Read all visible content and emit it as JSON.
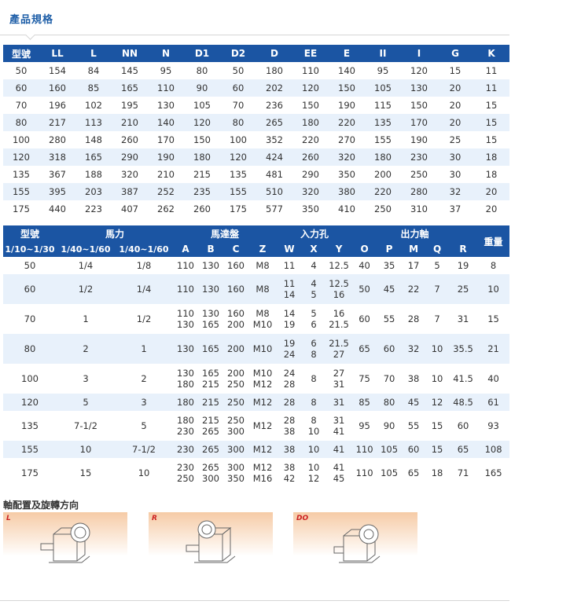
{
  "tab": {
    "title": "產品規格"
  },
  "table1": {
    "headers": [
      "型號",
      "LL",
      "L",
      "NN",
      "N",
      "D1",
      "D2",
      "D",
      "EE",
      "E",
      "II",
      "I",
      "G",
      "K"
    ],
    "rows": [
      [
        "50",
        "154",
        "84",
        "145",
        "95",
        "80",
        "50",
        "180",
        "110",
        "140",
        "95",
        "120",
        "15",
        "11"
      ],
      [
        "60",
        "160",
        "85",
        "165",
        "110",
        "90",
        "60",
        "202",
        "120",
        "150",
        "105",
        "130",
        "20",
        "11"
      ],
      [
        "70",
        "196",
        "102",
        "195",
        "130",
        "105",
        "70",
        "236",
        "150",
        "190",
        "115",
        "150",
        "20",
        "15"
      ],
      [
        "80",
        "217",
        "113",
        "210",
        "140",
        "120",
        "80",
        "265",
        "180",
        "220",
        "135",
        "170",
        "20",
        "15"
      ],
      [
        "100",
        "280",
        "148",
        "260",
        "170",
        "150",
        "100",
        "352",
        "220",
        "270",
        "155",
        "190",
        "25",
        "15"
      ],
      [
        "120",
        "318",
        "165",
        "290",
        "190",
        "180",
        "120",
        "424",
        "260",
        "320",
        "180",
        "230",
        "30",
        "18"
      ],
      [
        "135",
        "367",
        "188",
        "320",
        "210",
        "215",
        "135",
        "481",
        "290",
        "350",
        "200",
        "250",
        "30",
        "18"
      ],
      [
        "155",
        "395",
        "203",
        "387",
        "252",
        "235",
        "155",
        "510",
        "320",
        "380",
        "220",
        "280",
        "32",
        "20"
      ],
      [
        "175",
        "440",
        "223",
        "407",
        "262",
        "260",
        "175",
        "577",
        "350",
        "410",
        "250",
        "310",
        "37",
        "20"
      ]
    ]
  },
  "table2": {
    "groups": {
      "model": "型號",
      "hp": "馬力",
      "motor": "馬達盤",
      "input": "入力孔",
      "output": "出力軸",
      "weight": "重量"
    },
    "subheaders": [
      "1/10~1/30",
      "1/40~1/60",
      "1/40~1/60",
      "A",
      "B",
      "C",
      "Z",
      "W",
      "X",
      "Y",
      "O",
      "P",
      "M",
      "Q",
      "R"
    ],
    "rows": [
      [
        [
          "50"
        ],
        [
          "1/4"
        ],
        [
          "1/8"
        ],
        [
          "110"
        ],
        [
          "130"
        ],
        [
          "160"
        ],
        [
          "M8"
        ],
        [
          "11"
        ],
        [
          "4"
        ],
        [
          "12.5"
        ],
        [
          "40"
        ],
        [
          "35"
        ],
        [
          "17"
        ],
        [
          "5"
        ],
        [
          "19"
        ],
        [
          "8"
        ]
      ],
      [
        [
          "60"
        ],
        [
          "1/2"
        ],
        [
          "1/4"
        ],
        [
          "110"
        ],
        [
          "130"
        ],
        [
          "160"
        ],
        [
          "M8"
        ],
        [
          "11",
          "14"
        ],
        [
          "4",
          "5"
        ],
        [
          "12.5",
          "16"
        ],
        [
          "50"
        ],
        [
          "45"
        ],
        [
          "22"
        ],
        [
          "7"
        ],
        [
          "25"
        ],
        [
          "10"
        ]
      ],
      [
        [
          "70"
        ],
        [
          "1"
        ],
        [
          "1/2"
        ],
        [
          "110",
          "130"
        ],
        [
          "130",
          "165"
        ],
        [
          "160",
          "200"
        ],
        [
          "M8",
          "M10"
        ],
        [
          "14",
          "19"
        ],
        [
          "5",
          "6"
        ],
        [
          "16",
          "21.5"
        ],
        [
          "60"
        ],
        [
          "55"
        ],
        [
          "28"
        ],
        [
          "7"
        ],
        [
          "31"
        ],
        [
          "15"
        ]
      ],
      [
        [
          "80"
        ],
        [
          "2"
        ],
        [
          "1"
        ],
        [
          "130"
        ],
        [
          "165"
        ],
        [
          "200"
        ],
        [
          "M10"
        ],
        [
          "19",
          "24"
        ],
        [
          "6",
          "8"
        ],
        [
          "21.5",
          "27"
        ],
        [
          "65"
        ],
        [
          "60"
        ],
        [
          "32"
        ],
        [
          "10"
        ],
        [
          "35.5"
        ],
        [
          "21"
        ]
      ],
      [
        [
          "100"
        ],
        [
          "3"
        ],
        [
          "2"
        ],
        [
          "130",
          "180"
        ],
        [
          "165",
          "215"
        ],
        [
          "200",
          "250"
        ],
        [
          "M10",
          "M12"
        ],
        [
          "24",
          "28"
        ],
        [
          "8"
        ],
        [
          "27",
          "31"
        ],
        [
          "75"
        ],
        [
          "70"
        ],
        [
          "38"
        ],
        [
          "10"
        ],
        [
          "41.5"
        ],
        [
          "40"
        ]
      ],
      [
        [
          "120"
        ],
        [
          "5"
        ],
        [
          "3"
        ],
        [
          "180"
        ],
        [
          "215"
        ],
        [
          "250"
        ],
        [
          "M12"
        ],
        [
          "28"
        ],
        [
          "8"
        ],
        [
          "31"
        ],
        [
          "85"
        ],
        [
          "80"
        ],
        [
          "45"
        ],
        [
          "12"
        ],
        [
          "48.5"
        ],
        [
          "61"
        ]
      ],
      [
        [
          "135"
        ],
        [
          "7-1/2"
        ],
        [
          "5"
        ],
        [
          "180",
          "230"
        ],
        [
          "215",
          "265"
        ],
        [
          "250",
          "300"
        ],
        [
          "M12"
        ],
        [
          "28",
          "38"
        ],
        [
          "8",
          "10"
        ],
        [
          "31",
          "41"
        ],
        [
          "95"
        ],
        [
          "90"
        ],
        [
          "55"
        ],
        [
          "15"
        ],
        [
          "60"
        ],
        [
          "93"
        ]
      ],
      [
        [
          "155"
        ],
        [
          "10"
        ],
        [
          "7-1/2"
        ],
        [
          "230"
        ],
        [
          "265"
        ],
        [
          "300"
        ],
        [
          "M12"
        ],
        [
          "38"
        ],
        [
          "10"
        ],
        [
          "41"
        ],
        [
          "110"
        ],
        [
          "105"
        ],
        [
          "60"
        ],
        [
          "15"
        ],
        [
          "65"
        ],
        [
          "108"
        ]
      ],
      [
        [
          "175"
        ],
        [
          "15"
        ],
        [
          "10"
        ],
        [
          "230",
          "250"
        ],
        [
          "265",
          "300"
        ],
        [
          "300",
          "350"
        ],
        [
          "M12",
          "M16"
        ],
        [
          "38",
          "42"
        ],
        [
          "10",
          "12"
        ],
        [
          "41",
          "45"
        ],
        [
          "110"
        ],
        [
          "105"
        ],
        [
          "65"
        ],
        [
          "18"
        ],
        [
          "71"
        ],
        [
          "165"
        ]
      ]
    ]
  },
  "arrangement": {
    "title": "軸配置及旋轉方向",
    "panels": [
      {
        "label": "L"
      },
      {
        "label": "R"
      },
      {
        "label": "DO"
      }
    ]
  }
}
